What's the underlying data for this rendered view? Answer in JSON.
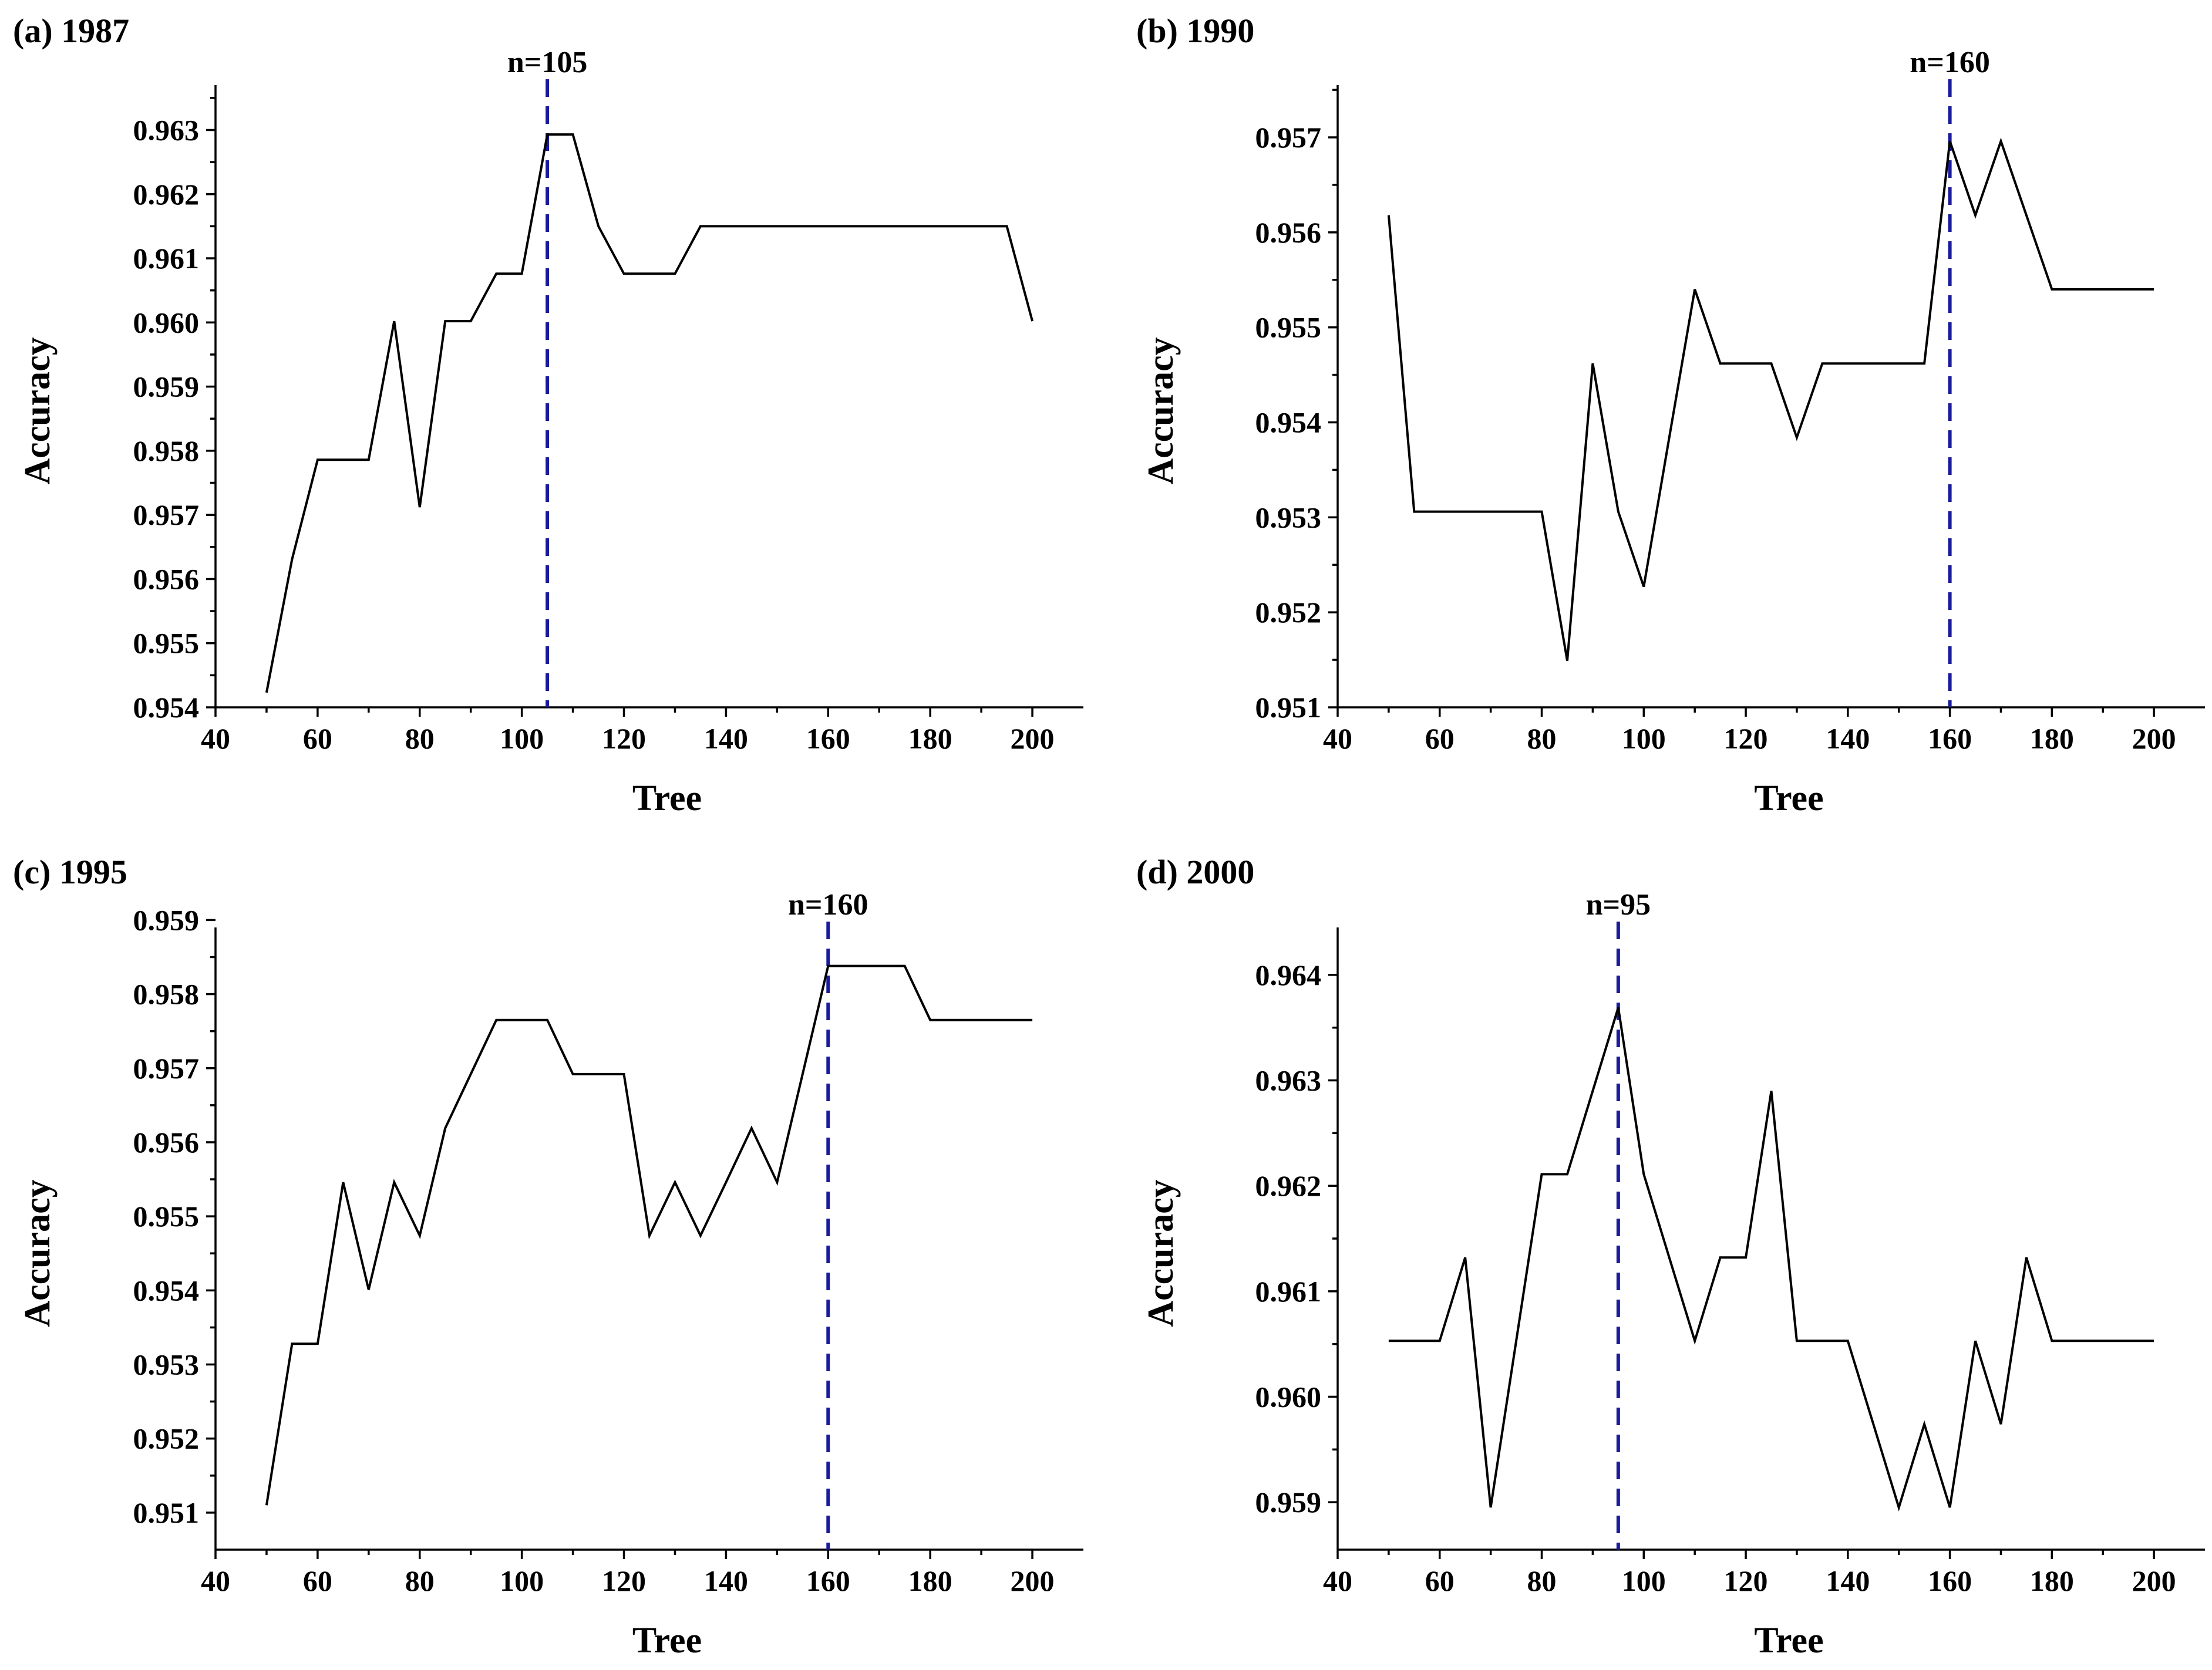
{
  "chart_data": [
    {
      "type": "line",
      "title": "(a) 1987",
      "xlabel": "Tree",
      "ylabel": "Accuracy",
      "xlim": [
        40,
        210
      ],
      "ylim": [
        0.954,
        0.9637
      ],
      "xticks": [
        40,
        60,
        80,
        100,
        120,
        140,
        160,
        180,
        200
      ],
      "xtick_labels": [
        "40",
        "60",
        "80",
        "100",
        "120",
        "140",
        "160",
        "180",
        "200"
      ],
      "yticks": [
        0.954,
        0.955,
        0.956,
        0.957,
        0.958,
        0.959,
        0.96,
        0.961,
        0.962,
        0.963
      ],
      "ytick_labels": [
        "0.954",
        "0.955",
        "0.956",
        "0.957",
        "0.958",
        "0.959",
        "0.960",
        "0.961",
        "0.962",
        "0.963"
      ],
      "x": [
        50,
        55,
        60,
        65,
        70,
        75,
        80,
        85,
        90,
        95,
        100,
        105,
        110,
        115,
        120,
        125,
        130,
        135,
        140,
        145,
        150,
        155,
        160,
        165,
        170,
        175,
        180,
        185,
        190,
        195,
        200
      ],
      "y": [
        0.95423,
        0.95631,
        0.95786,
        0.95786,
        0.95786,
        0.96002,
        0.95712,
        0.96002,
        0.96002,
        0.96076,
        0.96076,
        0.96293,
        0.96293,
        0.9615,
        0.96076,
        0.96076,
        0.96076,
        0.9615,
        0.9615,
        0.9615,
        0.9615,
        0.9615,
        0.9615,
        0.9615,
        0.9615,
        0.9615,
        0.9615,
        0.9615,
        0.9615,
        0.9615,
        0.96002
      ],
      "marker": {
        "x": 105,
        "label": "n=105"
      }
    },
    {
      "type": "line",
      "title": "(b) 1990",
      "xlabel": "Tree",
      "ylabel": "Accuracy",
      "xlim": [
        40,
        210
      ],
      "ylim": [
        0.951,
        0.95755
      ],
      "xticks": [
        40,
        60,
        80,
        100,
        120,
        140,
        160,
        180,
        200
      ],
      "xtick_labels": [
        "40",
        "60",
        "80",
        "100",
        "120",
        "140",
        "160",
        "180",
        "200"
      ],
      "yticks": [
        0.951,
        0.952,
        0.953,
        0.954,
        0.955,
        0.956,
        0.957
      ],
      "ytick_labels": [
        "0.951",
        "0.952",
        "0.953",
        "0.954",
        "0.955",
        "0.956",
        "0.957"
      ],
      "x": [
        50,
        55,
        60,
        65,
        70,
        75,
        80,
        85,
        90,
        95,
        100,
        105,
        110,
        115,
        120,
        125,
        130,
        135,
        140,
        145,
        150,
        155,
        160,
        165,
        170,
        175,
        180,
        185,
        190,
        195,
        200
      ],
      "y": [
        0.95618,
        0.95306,
        0.95306,
        0.95306,
        0.95306,
        0.95306,
        0.95306,
        0.95149,
        0.95462,
        0.95306,
        0.95227,
        0.95384,
        0.9554,
        0.95462,
        0.95462,
        0.95462,
        0.95384,
        0.95462,
        0.95462,
        0.95462,
        0.95462,
        0.95462,
        0.95696,
        0.95618,
        0.95696,
        0.95618,
        0.9554,
        0.9554,
        0.9554,
        0.9554,
        0.9554
      ],
      "marker": {
        "x": 160,
        "label": "n=160"
      }
    },
    {
      "type": "line",
      "title": "(c) 1995",
      "xlabel": "Tree",
      "ylabel": "Accuracy",
      "xlim": [
        40,
        210
      ],
      "ylim": [
        0.9505,
        0.9589
      ],
      "xticks": [
        40,
        60,
        80,
        100,
        120,
        140,
        160,
        180,
        200
      ],
      "xtick_labels": [
        "40",
        "60",
        "80",
        "100",
        "120",
        "140",
        "160",
        "180",
        "200"
      ],
      "yticks": [
        0.951,
        0.952,
        0.953,
        0.954,
        0.955,
        0.956,
        0.957,
        0.958,
        0.959
      ],
      "ytick_labels": [
        "0.951",
        "0.952",
        "0.953",
        "0.954",
        "0.955",
        "0.956",
        "0.957",
        "0.958",
        "0.959"
      ],
      "x": [
        50,
        55,
        60,
        65,
        70,
        75,
        80,
        85,
        90,
        95,
        100,
        105,
        110,
        115,
        120,
        125,
        130,
        135,
        140,
        145,
        150,
        155,
        160,
        165,
        170,
        175,
        180,
        185,
        190,
        195,
        200
      ],
      "y": [
        0.9511,
        0.95328,
        0.95328,
        0.95546,
        0.95401,
        0.95546,
        0.95474,
        0.95619,
        0.95692,
        0.95765,
        0.95765,
        0.95765,
        0.95692,
        0.95692,
        0.95692,
        0.95474,
        0.95546,
        0.95474,
        0.95546,
        0.95619,
        0.95546,
        0.95692,
        0.95838,
        0.95838,
        0.95838,
        0.95838,
        0.95765,
        0.95765,
        0.95765,
        0.95765,
        0.95765
      ],
      "marker": {
        "x": 160,
        "label": "n=160"
      }
    },
    {
      "type": "line",
      "title": "(d) 2000",
      "xlabel": "Tree",
      "ylabel": "Accuracy",
      "xlim": [
        40,
        210
      ],
      "ylim": [
        0.95855,
        0.96445
      ],
      "xticks": [
        40,
        60,
        80,
        100,
        120,
        140,
        160,
        180,
        200
      ],
      "xtick_labels": [
        "40",
        "60",
        "80",
        "100",
        "120",
        "140",
        "160",
        "180",
        "200"
      ],
      "yticks": [
        0.959,
        0.96,
        0.961,
        0.962,
        0.963,
        0.964
      ],
      "ytick_labels": [
        "0.959",
        "0.960",
        "0.961",
        "0.962",
        "0.963",
        "0.964"
      ],
      "x": [
        50,
        55,
        60,
        65,
        70,
        75,
        80,
        85,
        90,
        95,
        100,
        105,
        110,
        115,
        120,
        125,
        130,
        135,
        140,
        145,
        150,
        155,
        160,
        165,
        170,
        175,
        180,
        185,
        190,
        195,
        200
      ],
      "y": [
        0.96053,
        0.96053,
        0.96053,
        0.96132,
        0.95895,
        0.96053,
        0.96211,
        0.96211,
        0.9629,
        0.96369,
        0.96211,
        0.96132,
        0.96053,
        0.96132,
        0.96132,
        0.9629,
        0.96053,
        0.96053,
        0.96053,
        0.95974,
        0.95895,
        0.95974,
        0.95895,
        0.96053,
        0.95974,
        0.96132,
        0.96053,
        0.96053,
        0.96053,
        0.96053,
        0.96053
      ],
      "marker": {
        "x": 95,
        "label": "n=95"
      }
    }
  ]
}
